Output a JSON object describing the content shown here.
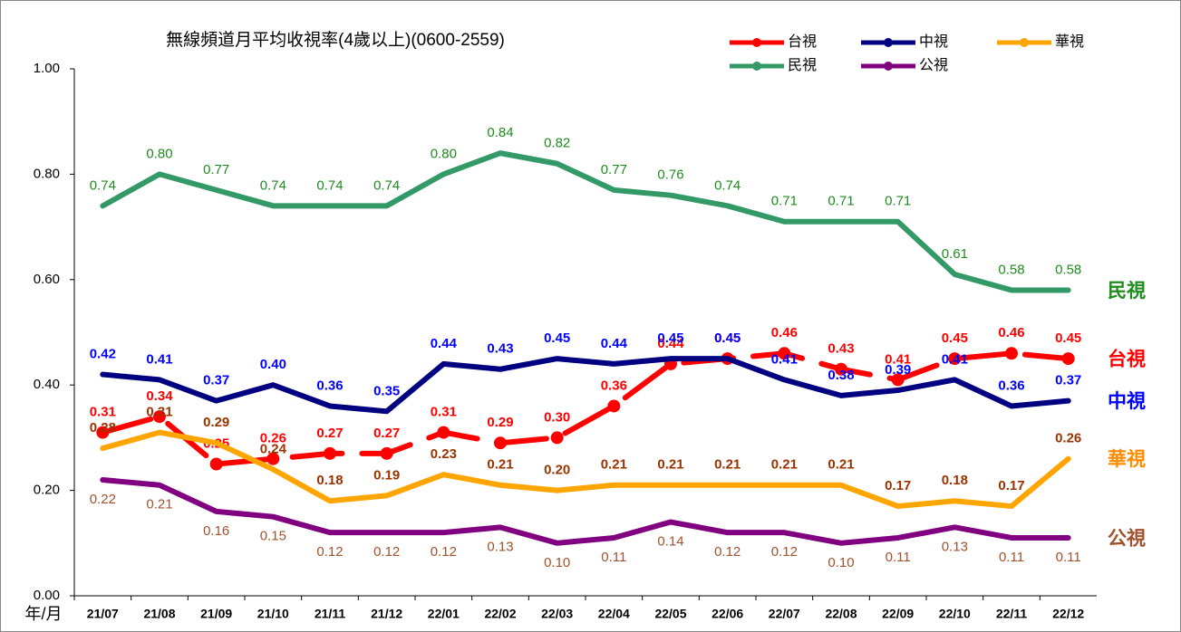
{
  "chart_data": {
    "type": "line",
    "title": "無線頻道月平均收視率(4歲以上)(0600-2559)",
    "x_label": "年/月",
    "categories": [
      "21/07",
      "21/08",
      "21/09",
      "21/10",
      "21/11",
      "21/12",
      "22/01",
      "22/02",
      "22/03",
      "22/04",
      "22/05",
      "22/06",
      "22/07",
      "22/08",
      "22/09",
      "22/10",
      "22/11",
      "22/12"
    ],
    "ylim": [
      0,
      1
    ],
    "yticks": [
      {
        "value": 0,
        "label": "0.00"
      },
      {
        "value": 0.2,
        "label": "0.20"
      },
      {
        "value": 0.4,
        "label": "0.40"
      },
      {
        "value": 0.6,
        "label": "0.60"
      },
      {
        "value": 0.8,
        "label": "0.80"
      },
      {
        "value": 1,
        "label": "1.00"
      }
    ],
    "series": [
      {
        "name": "台視",
        "color": "#ff0000",
        "label_color": "#ff0000",
        "dashed": true,
        "values": [
          0.31,
          0.34,
          0.25,
          0.26,
          0.27,
          0.27,
          0.31,
          0.29,
          0.3,
          0.36,
          0.44,
          0.45,
          0.46,
          0.43,
          0.41,
          0.45,
          0.46,
          0.45
        ],
        "value_labels": [
          "0.31",
          "0.34",
          "0.25",
          "0.26",
          "0.27",
          "0.27",
          "0.31",
          "0.29",
          "0.30",
          "0.36",
          "0.44",
          "0.45",
          "0.46",
          "0.43",
          "0.41",
          "0.45",
          "0.46",
          "0.45"
        ]
      },
      {
        "name": "中視",
        "color": "#000080",
        "label_color": "#0000ff",
        "values": [
          0.42,
          0.41,
          0.37,
          0.4,
          0.36,
          0.35,
          0.44,
          0.43,
          0.45,
          0.44,
          0.45,
          0.45,
          0.41,
          0.38,
          0.39,
          0.41,
          0.36,
          0.37
        ],
        "value_labels": [
          "0.42",
          "0.41",
          "0.37",
          "0.40",
          "0.36",
          "0.35",
          "0.44",
          "0.43",
          "0.45",
          "0.44",
          "0.45",
          "0.45",
          "0.41",
          "0.38",
          "0.39",
          "0.41",
          "0.36",
          "0.37"
        ]
      },
      {
        "name": "華視",
        "color": "#ffa500",
        "label_color": "#993300",
        "values": [
          0.28,
          0.31,
          0.29,
          0.24,
          0.18,
          0.19,
          0.23,
          0.21,
          0.2,
          0.21,
          0.21,
          0.21,
          0.21,
          0.21,
          0.17,
          0.18,
          0.17,
          0.26
        ],
        "value_labels": [
          "0.28",
          "0.31",
          "0.29",
          "0.24",
          "0.18",
          "0.19",
          "0.23",
          "0.21",
          "0.20",
          "0.21",
          "0.21",
          "0.21",
          "0.21",
          "0.21",
          "0.17",
          "0.18",
          "0.17",
          "0.26"
        ]
      },
      {
        "name": "民視",
        "color": "#339966",
        "label_color": "#1e8c1e",
        "values": [
          0.74,
          0.8,
          0.77,
          0.74,
          0.74,
          0.74,
          0.8,
          0.84,
          0.82,
          0.77,
          0.76,
          0.74,
          0.71,
          0.71,
          0.71,
          0.61,
          0.58,
          0.58
        ],
        "value_labels": [
          "0.74",
          "0.80",
          "0.77",
          "0.74",
          "0.74",
          "0.74",
          "0.80",
          "0.84",
          "0.82",
          "0.77",
          "0.76",
          "0.74",
          "0.71",
          "0.71",
          "0.71",
          "0.61",
          "0.58",
          "0.58"
        ]
      },
      {
        "name": "公視",
        "color": "#800080",
        "label_color": "#a0522d",
        "values": [
          0.22,
          0.21,
          0.16,
          0.15,
          0.12,
          0.12,
          0.12,
          0.13,
          0.1,
          0.11,
          0.14,
          0.12,
          0.12,
          0.1,
          0.11,
          0.13,
          0.11,
          0.11
        ],
        "value_labels": [
          "0.22",
          "0.21",
          "0.16",
          "0.15",
          "0.12",
          "0.12",
          "0.12",
          "0.13",
          "0.10",
          "0.11",
          "0.14",
          "0.12",
          "0.12",
          "0.10",
          "0.11",
          "0.13",
          "0.11",
          "0.11"
        ]
      }
    ]
  }
}
